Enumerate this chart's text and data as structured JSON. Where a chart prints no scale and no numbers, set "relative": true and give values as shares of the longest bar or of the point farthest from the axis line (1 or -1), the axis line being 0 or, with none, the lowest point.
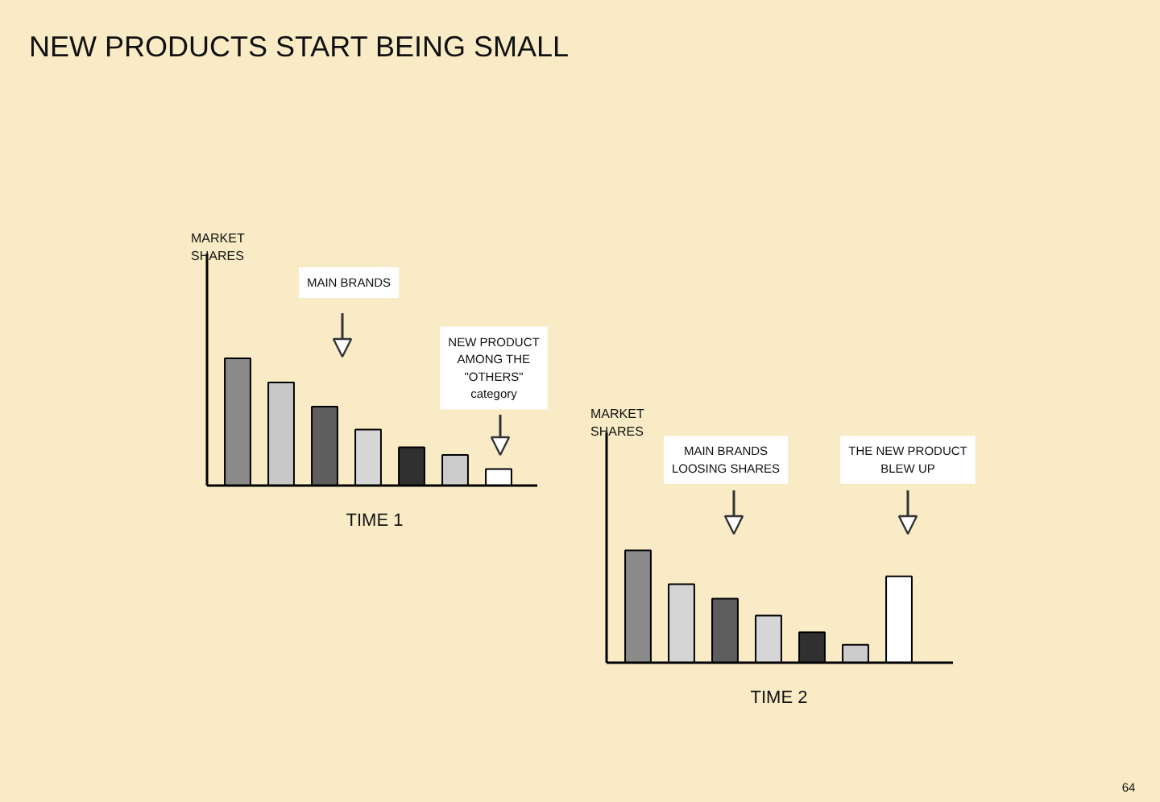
{
  "chart_data": [
    {
      "type": "bar",
      "title": "NEW PRODUCTS START BEING SMALL",
      "xlabel": "TIME 1",
      "ylabel": "MARKET SHARES",
      "annotations": [
        "MAIN BRANDS",
        "NEW PRODUCT AMONG THE \"OTHERS\" category"
      ],
      "categories": [
        null,
        null,
        null,
        null,
        null,
        null,
        null
      ],
      "values": [
        1,
        0.81,
        0.62,
        0.44,
        0.3,
        0.24,
        0.13
      ],
      "colors": [
        "#8a8a8a",
        "#c8c8c8",
        "#5e5e5e",
        "#d6d6d6",
        "#303030",
        "#cccccc",
        "#ffffff"
      ],
      "relative": true
    },
    {
      "type": "bar",
      "xlabel": "TIME 2",
      "ylabel": "MARKET SHARES",
      "annotations": [
        "MAIN BRANDS LOOSING SHARES",
        "THE NEW PRODUCT BLEW UP",
        "64"
      ],
      "categories": [
        null,
        null,
        null,
        null,
        null,
        null,
        null
      ],
      "values": [
        1,
        0.7,
        0.57,
        0.42,
        0.27,
        0.16,
        0.77
      ],
      "colors": [
        "#8a8a8a",
        "#d4d4d4",
        "#5e5e5e",
        "#d6d6d6",
        "#303030",
        "#cccccc",
        "#ffffff"
      ],
      "relative": true
    }
  ]
}
